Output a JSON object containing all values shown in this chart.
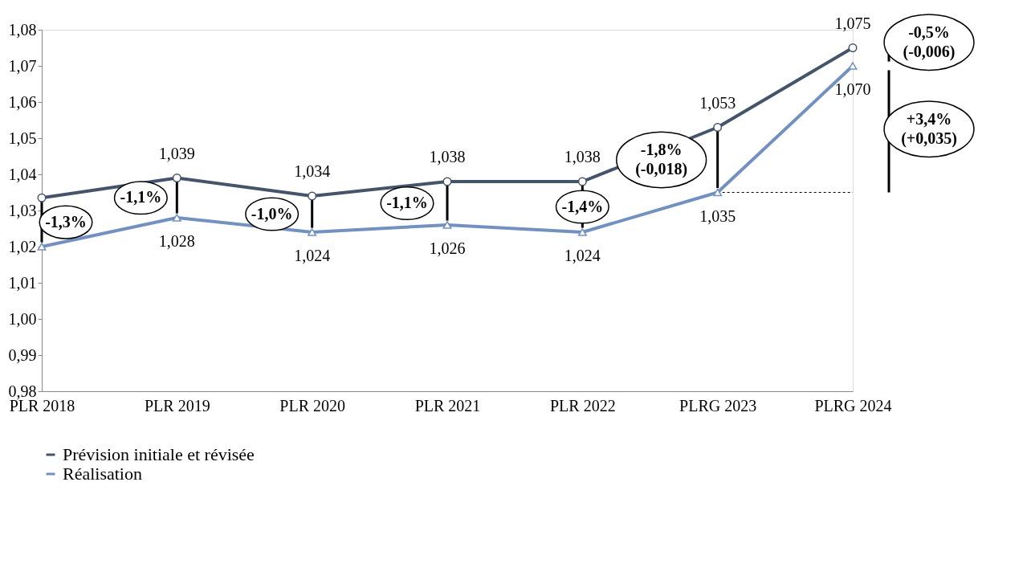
{
  "chart_data": {
    "type": "line",
    "categories": [
      "PLR 2018",
      "PLR 2019",
      "PLR 2020",
      "PLR 2021",
      "PLR 2022",
      "PLRG 2023",
      "PLRG 2024"
    ],
    "series": [
      {
        "name": "Prévision initiale et révisée",
        "color": "#44546a",
        "marker": "circle",
        "values": [
          1.0335,
          1.039,
          1.034,
          1.038,
          1.038,
          1.053,
          1.075
        ],
        "value_labels": [
          null,
          "1,039",
          "1,034",
          "1,038",
          "1,038",
          "1,053",
          "1,075"
        ]
      },
      {
        "name": "Réalisation",
        "color": "#7291c0",
        "marker": "triangle",
        "values": [
          1.02,
          1.028,
          1.024,
          1.026,
          1.024,
          1.035,
          1.07
        ],
        "value_labels": [
          null,
          "1,028",
          "1,024",
          "1,026",
          "1,024",
          "1,035",
          "1,070"
        ]
      }
    ],
    "ylim": [
      0.98,
      1.08
    ],
    "yticks": [
      {
        "value": 0.98,
        "label": "0,98"
      },
      {
        "value": 0.99,
        "label": "0,99"
      },
      {
        "value": 1.0,
        "label": "1,00"
      },
      {
        "value": 1.01,
        "label": "1,01"
      },
      {
        "value": 1.02,
        "label": "1,02"
      },
      {
        "value": 1.03,
        "label": "1,03"
      },
      {
        "value": 1.04,
        "label": "1,04"
      },
      {
        "value": 1.05,
        "label": "1,05"
      },
      {
        "value": 1.06,
        "label": "1,06"
      },
      {
        "value": 1.07,
        "label": "1,07"
      },
      {
        "value": 1.08,
        "label": "1,08"
      }
    ],
    "annotations": [
      "-1,3%",
      "-1,1%",
      "-1,0%",
      "-1,1%",
      "-1,4%",
      "-1,8%\n(-0,018)",
      "-0,5%\n(-0,006)",
      "+3,4%\n(+0,035)"
    ],
    "grid": false,
    "legend": "bottom left"
  }
}
